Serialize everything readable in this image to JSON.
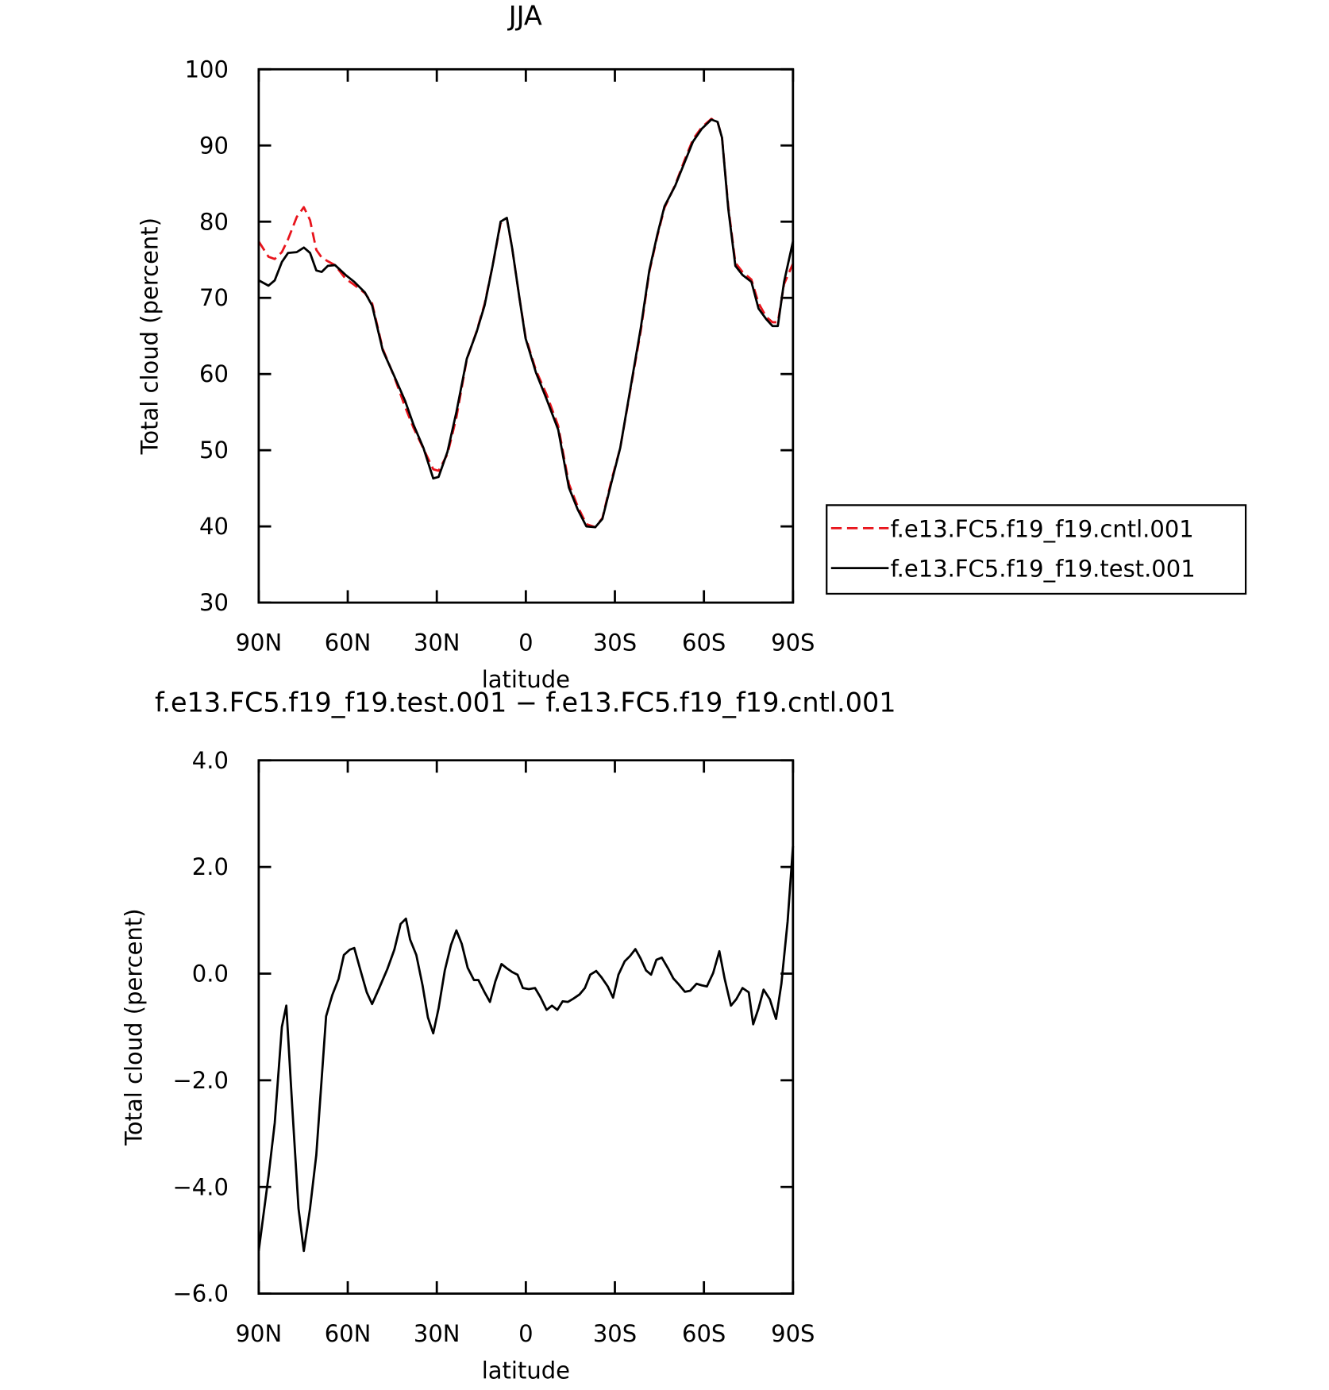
{
  "chart_data": [
    {
      "type": "line",
      "title": "JJA",
      "x_label": "latitude",
      "y_label": "Total cloud (percent)",
      "x": [
        90,
        86.7,
        84.6,
        82.2,
        80.1,
        77.2,
        74.8,
        72.7,
        70.6,
        68.8,
        66.7,
        64.3,
        60.7,
        57.8,
        54.2,
        51.8,
        48.2,
        44.3,
        40.7,
        37.8,
        34.5,
        31.2,
        29.4,
        26.4,
        23.4,
        19.9,
        16.6,
        13.9,
        11.2,
        8.5,
        6.4,
        4.6,
        2.2,
        0.1,
        -3.4,
        -7.0,
        -10.9,
        -14.5,
        -17.5,
        -20.4,
        -23.4,
        -25.8,
        -28.8,
        -31.8,
        -35.4,
        -38.7,
        -41.6,
        -44.3,
        -46.7,
        -50.3,
        -53.3,
        -56.3,
        -59.3,
        -62.5,
        -64.6,
        -66.1,
        -68.2,
        -70.6,
        -73.0,
        -76.0,
        -78.4,
        -81.0,
        -83.1,
        -84.9,
        -87.0,
        -90.0
      ],
      "series": [
        {
          "name": "f.e13.FC5.f19_f19.cntl.001",
          "color": "#e8141c",
          "line_style": "dashed",
          "values": [
            77.4,
            75.4,
            75.1,
            76.0,
            77.7,
            80.6,
            81.9,
            80.2,
            76.3,
            75.3,
            74.8,
            74.3,
            72.5,
            71.7,
            70.6,
            69.3,
            63.3,
            59.6,
            55.7,
            52.9,
            50.2,
            47.5,
            47.3,
            49.5,
            54.3,
            61.9,
            65.6,
            69.2,
            74.2,
            79.8,
            80.4,
            76.5,
            70.1,
            64.9,
            60.5,
            57.3,
            53.2,
            45.6,
            42.6,
            40.3,
            39.9,
            41.1,
            46.0,
            50.3,
            58.3,
            65.6,
            73.4,
            78.1,
            81.8,
            84.8,
            87.9,
            90.8,
            92.4,
            93.5,
            93.1,
            91.0,
            82.0,
            74.6,
            73.4,
            72.4,
            69.3,
            67.5,
            66.8,
            66.8,
            71.8,
            74.5
          ]
        },
        {
          "name": "f.e13.FC5.f19_f19.test.001",
          "color": "#000000",
          "line_style": "solid",
          "values": [
            72.3,
            71.6,
            72.3,
            74.7,
            75.9,
            76.0,
            76.6,
            75.9,
            73.6,
            73.4,
            74.2,
            74.3,
            73.0,
            72.1,
            70.7,
            69.0,
            63.1,
            59.7,
            56.5,
            53.3,
            50.3,
            46.3,
            46.5,
            49.8,
            55.0,
            62.0,
            65.5,
            69.0,
            74.2,
            80.0,
            80.5,
            76.5,
            70.1,
            64.7,
            60.2,
            56.7,
            52.7,
            45.1,
            42.2,
            40.0,
            39.9,
            41.0,
            45.7,
            50.3,
            58.5,
            66.0,
            73.6,
            78.3,
            82.0,
            84.7,
            87.6,
            90.5,
            92.2,
            93.4,
            93.1,
            91.0,
            81.7,
            74.2,
            73.0,
            72.1,
            68.6,
            67.2,
            66.3,
            66.3,
            72.1,
            77.4
          ]
        }
      ],
      "xlim": [
        90,
        -90
      ],
      "xticks": [
        {
          "value": 90,
          "label": "90N"
        },
        {
          "value": 60,
          "label": "60N"
        },
        {
          "value": 30,
          "label": "30N"
        },
        0,
        {
          "value": -30,
          "label": "30S"
        },
        {
          "value": -60,
          "label": "60S"
        },
        {
          "value": -90,
          "label": "90S"
        }
      ],
      "ylim": [
        30,
        100
      ],
      "yticks": [
        30,
        40,
        50,
        60,
        70,
        80,
        90,
        100
      ],
      "legend": "right"
    },
    {
      "type": "line",
      "title": "f.e13.FC5.f19_f19.test.001 − f.e13.FC5.f19_f19.cntl.001",
      "x_label": "latitude",
      "y_label": "Total cloud (percent)",
      "x": [
        90,
        86.7,
        84.6,
        82.2,
        80.7,
        78.7,
        76.6,
        74.8,
        72.7,
        70.6,
        67.3,
        65.2,
        63.1,
        61.3,
        59.3,
        57.8,
        55.7,
        53.6,
        51.8,
        49.4,
        46.7,
        44.3,
        42.2,
        40.4,
        39.0,
        36.9,
        34.8,
        33.0,
        31.2,
        29.4,
        27.3,
        25.2,
        23.4,
        21.6,
        19.6,
        17.5,
        16.0,
        13.9,
        12.1,
        10.3,
        8.2,
        6.4,
        4.6,
        2.8,
        1.0,
        -1.0,
        -3.1,
        -4.9,
        -7.0,
        -8.8,
        -10.6,
        -12.4,
        -14.2,
        -16.0,
        -18.1,
        -19.9,
        -21.7,
        -23.7,
        -25.5,
        -27.6,
        -29.4,
        -31.2,
        -33.3,
        -35.1,
        -36.9,
        -38.7,
        -40.5,
        -42.2,
        -44.0,
        -45.8,
        -47.9,
        -49.7,
        -51.5,
        -53.6,
        -55.4,
        -57.5,
        -59.3,
        -61.0,
        -63.1,
        -65.2,
        -67.0,
        -69.1,
        -70.9,
        -73.0,
        -75.1,
        -76.6,
        -78.4,
        -80.1,
        -82.2,
        -84.3,
        -86.1,
        -88.2,
        -90.0
      ],
      "series": [
        {
          "color": "#000000",
          "line_style": "solid",
          "values": [
            -5.2,
            -3.8,
            -2.8,
            -1.0,
            -0.6,
            -2.5,
            -4.4,
            -5.2,
            -4.4,
            -3.4,
            -0.8,
            -0.4,
            -0.1,
            0.35,
            0.45,
            0.48,
            0.06,
            -0.35,
            -0.57,
            -0.27,
            0.08,
            0.45,
            0.93,
            1.03,
            0.64,
            0.35,
            -0.22,
            -0.82,
            -1.12,
            -0.65,
            0.06,
            0.54,
            0.81,
            0.56,
            0.11,
            -0.12,
            -0.12,
            -0.35,
            -0.53,
            -0.15,
            0.18,
            0.1,
            0.03,
            -0.02,
            -0.27,
            -0.29,
            -0.27,
            -0.44,
            -0.68,
            -0.6,
            -0.68,
            -0.52,
            -0.53,
            -0.47,
            -0.39,
            -0.27,
            -0.02,
            0.05,
            -0.07,
            -0.24,
            -0.45,
            -0.02,
            0.23,
            0.33,
            0.46,
            0.28,
            0.06,
            -0.02,
            0.26,
            0.3,
            0.1,
            -0.09,
            -0.2,
            -0.34,
            -0.32,
            -0.19,
            -0.22,
            -0.24,
            0.01,
            0.42,
            -0.1,
            -0.6,
            -0.48,
            -0.27,
            -0.35,
            -0.95,
            -0.65,
            -0.3,
            -0.48,
            -0.85,
            -0.19,
            0.98,
            2.39
          ]
        }
      ],
      "xlim": [
        90,
        -90
      ],
      "xticks": [
        {
          "value": 90,
          "label": "90N"
        },
        {
          "value": 60,
          "label": "60N"
        },
        {
          "value": 30,
          "label": "30N"
        },
        0,
        {
          "value": -30,
          "label": "30S"
        },
        {
          "value": -60,
          "label": "60S"
        },
        {
          "value": -90,
          "label": "90S"
        }
      ],
      "ylim": [
        -6,
        4
      ],
      "yticks": [
        {
          "value": -6,
          "label": "−6.0"
        },
        {
          "value": -4,
          "label": "−4.0"
        },
        {
          "value": -2,
          "label": "−2.0"
        },
        {
          "value": 0,
          "label": "0.0"
        },
        {
          "value": 2,
          "label": "2.0"
        },
        {
          "value": 4,
          "label": "4.0"
        }
      ]
    }
  ]
}
